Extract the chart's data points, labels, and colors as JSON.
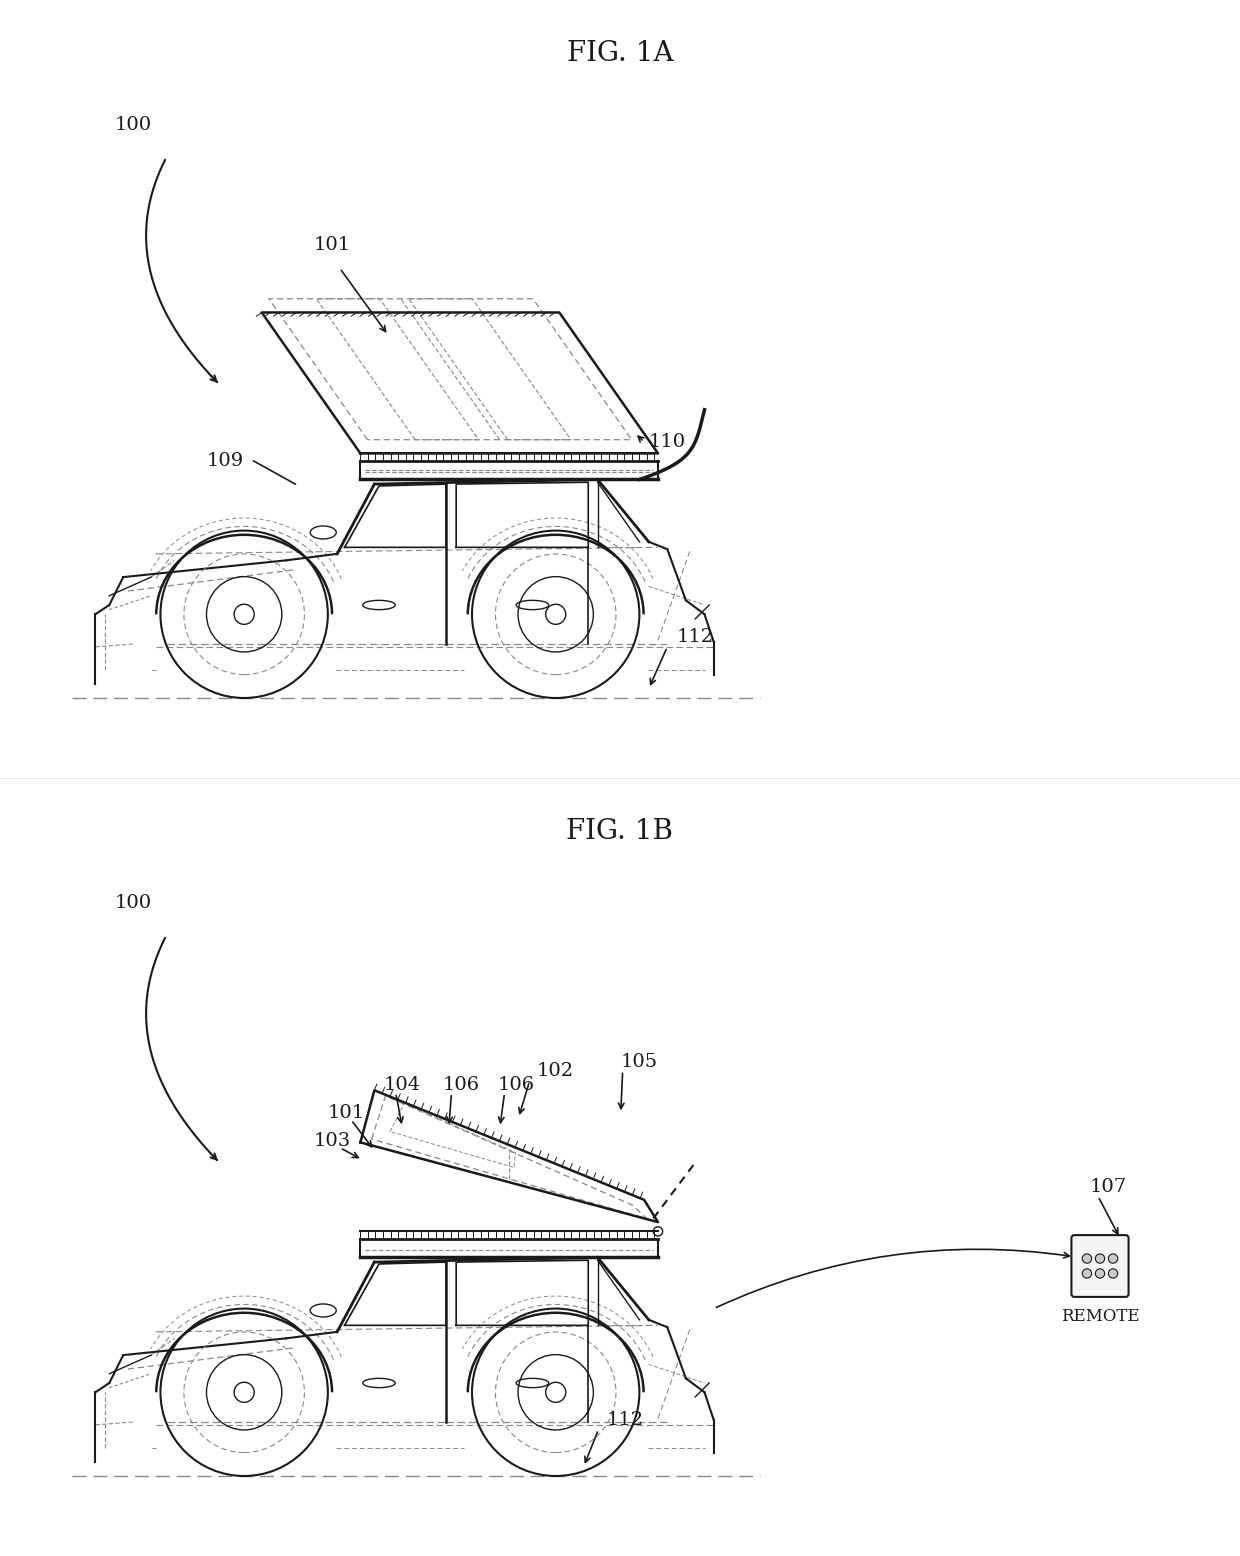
{
  "fig_title_1a": "FIG. 1A",
  "fig_title_1b": "FIG. 1B",
  "bg_color": "#ffffff",
  "line_color": "#1a1a1a",
  "dashed_color": "#888888",
  "label_color": "#1a1a1a",
  "font_size_title": 20,
  "font_size_label": 14,
  "remote_label": "REMOTE"
}
